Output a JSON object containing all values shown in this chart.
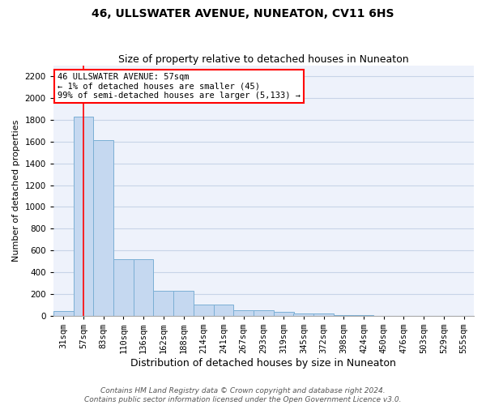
{
  "title": "46, ULLSWATER AVENUE, NUNEATON, CV11 6HS",
  "subtitle": "Size of property relative to detached houses in Nuneaton",
  "xlabel": "Distribution of detached houses by size in Nuneaton",
  "ylabel": "Number of detached properties",
  "bar_labels": [
    "31sqm",
    "57sqm",
    "83sqm",
    "110sqm",
    "136sqm",
    "162sqm",
    "188sqm",
    "214sqm",
    "241sqm",
    "267sqm",
    "293sqm",
    "319sqm",
    "345sqm",
    "372sqm",
    "398sqm",
    "424sqm",
    "450sqm",
    "476sqm",
    "503sqm",
    "529sqm",
    "555sqm"
  ],
  "bar_values": [
    45,
    1830,
    1610,
    520,
    520,
    230,
    230,
    105,
    105,
    55,
    55,
    35,
    20,
    20,
    10,
    5,
    2,
    1,
    0,
    0,
    0
  ],
  "bar_color": "#c5d8f0",
  "bar_edge_color": "#7bafd4",
  "red_line_index": 1,
  "annotation_text": "46 ULLSWATER AVENUE: 57sqm\n← 1% of detached houses are smaller (45)\n99% of semi-detached houses are larger (5,133) →",
  "annotation_box_facecolor": "white",
  "annotation_box_edgecolor": "red",
  "ylim": [
    0,
    2300
  ],
  "yticks": [
    0,
    200,
    400,
    600,
    800,
    1000,
    1200,
    1400,
    1600,
    1800,
    2000,
    2200
  ],
  "footer_line1": "Contains HM Land Registry data © Crown copyright and database right 2024.",
  "footer_line2": "Contains public sector information licensed under the Open Government Licence v3.0.",
  "plot_bg_color": "#eef2fb",
  "grid_color": "#c8d4e8",
  "title_fontsize": 10,
  "subtitle_fontsize": 9,
  "ylabel_fontsize": 8,
  "xlabel_fontsize": 9,
  "tick_fontsize": 7.5,
  "annotation_fontsize": 7.5,
  "footer_fontsize": 6.5
}
